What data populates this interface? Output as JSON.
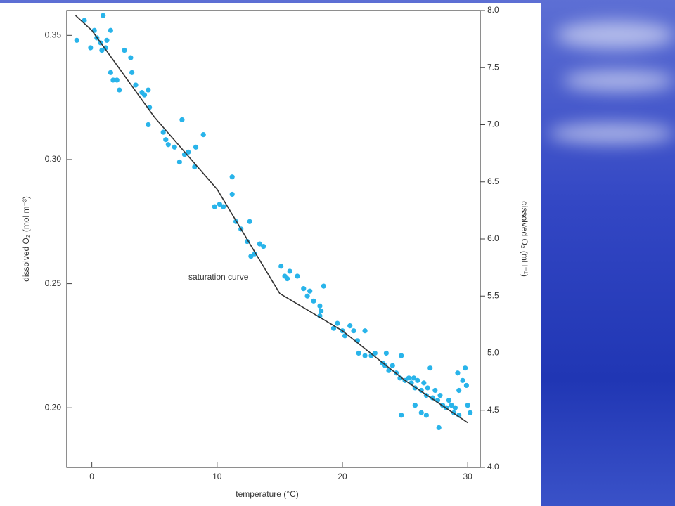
{
  "chart_data": {
    "type": "scatter",
    "xlabel": "temperature (°C)",
    "ylabel": "dissolved O₂ (mol m⁻³)",
    "y2label": "dissolved O₂ (ml l⁻¹)",
    "annotation": "saturation curve",
    "xlim": [
      -2,
      31
    ],
    "xticks": [
      0,
      10,
      20,
      30
    ],
    "ylim": [
      0.176,
      0.36
    ],
    "yticks": [
      {
        "value": 0.2,
        "label": "0.20"
      },
      0.25,
      {
        "value": 0.3,
        "label": "0.30"
      },
      0.35
    ],
    "y2lim": [
      4.0,
      8.0
    ],
    "y2ticks": [
      {
        "value": 4,
        "label": "4.0"
      },
      4.5,
      {
        "value": 5,
        "label": "5.0"
      },
      5.5,
      {
        "value": 6,
        "label": "6.0"
      },
      6.5,
      {
        "value": 7,
        "label": "7.0"
      },
      7.5,
      {
        "value": 8,
        "label": "8.0"
      }
    ],
    "series": [
      {
        "type": "scatter",
        "color": "#29b4ea",
        "x": [
          -1.2,
          -0.6,
          -0.1,
          0.2,
          0.4,
          0.7,
          0.9,
          0.8,
          1.1,
          1.2,
          1.5,
          1.5,
          1.7,
          2.0,
          2.2,
          2.6,
          3.1,
          3.2,
          3.5,
          4.0,
          4.2,
          4.5,
          4.6,
          4.5,
          5.7,
          5.9,
          6.1,
          6.6,
          7.2,
          7.0,
          7.4,
          7.7,
          8.3,
          8.2,
          8.9,
          9.8,
          10.2,
          10.5,
          11.2,
          11.2,
          11.5,
          11.9,
          12.6,
          12.4,
          13.0,
          13.4,
          13.7,
          12.7,
          15.1,
          15.4,
          15.6,
          15.8,
          16.4,
          16.9,
          17.2,
          17.4,
          17.7,
          18.2,
          18.3,
          18.5,
          18.2,
          19.3,
          19.6,
          20.0,
          20.2,
          20.6,
          20.9,
          21.2,
          21.8,
          21.3,
          21.8,
          22.3,
          22.6,
          23.2,
          23.5,
          23.4,
          23.7,
          24.0,
          24.3,
          24.7,
          24.6,
          25.0,
          25.3,
          25.5,
          25.7,
          25.8,
          26.0,
          26.3,
          26.5,
          26.7,
          26.8,
          27.0,
          27.2,
          27.4,
          27.6,
          27.8,
          28.0,
          28.3,
          28.5,
          28.7,
          29.0,
          29.2,
          29.3,
          29.6,
          29.8,
          30.0,
          29.9,
          24.7,
          25.8,
          26.3,
          26.7,
          27.7,
          28.9,
          30.2,
          29.3
        ],
        "values": [
          0.348,
          0.356,
          0.345,
          0.352,
          0.349,
          0.347,
          0.358,
          0.344,
          0.345,
          0.348,
          0.352,
          0.335,
          0.332,
          0.332,
          0.328,
          0.344,
          0.341,
          0.335,
          0.33,
          0.327,
          0.326,
          0.328,
          0.321,
          0.314,
          0.311,
          0.308,
          0.306,
          0.305,
          0.316,
          0.299,
          0.302,
          0.303,
          0.305,
          0.297,
          0.31,
          0.281,
          0.282,
          0.281,
          0.293,
          0.286,
          0.275,
          0.272,
          0.275,
          0.267,
          0.262,
          0.266,
          0.265,
          0.261,
          0.257,
          0.253,
          0.252,
          0.255,
          0.253,
          0.248,
          0.245,
          0.247,
          0.243,
          0.241,
          0.239,
          0.249,
          0.237,
          0.232,
          0.234,
          0.231,
          0.229,
          0.233,
          0.231,
          0.227,
          0.231,
          0.222,
          0.221,
          0.221,
          0.222,
          0.218,
          0.222,
          0.217,
          0.215,
          0.217,
          0.214,
          0.221,
          0.212,
          0.211,
          0.212,
          0.21,
          0.212,
          0.208,
          0.211,
          0.207,
          0.21,
          0.205,
          0.208,
          0.216,
          0.204,
          0.207,
          0.203,
          0.205,
          0.201,
          0.2,
          0.203,
          0.201,
          0.2,
          0.214,
          0.207,
          0.211,
          0.216,
          0.201,
          0.209,
          0.197,
          0.201,
          0.198,
          0.197,
          0.192,
          0.198,
          0.198,
          0.197
        ]
      },
      {
        "type": "line",
        "color": "#333333",
        "x": [
          -1.3,
          0,
          5,
          10,
          15,
          20,
          25,
          30
        ],
        "values": [
          0.358,
          0.352,
          0.317,
          0.288,
          0.246,
          0.231,
          0.211,
          0.194
        ]
      }
    ]
  }
}
